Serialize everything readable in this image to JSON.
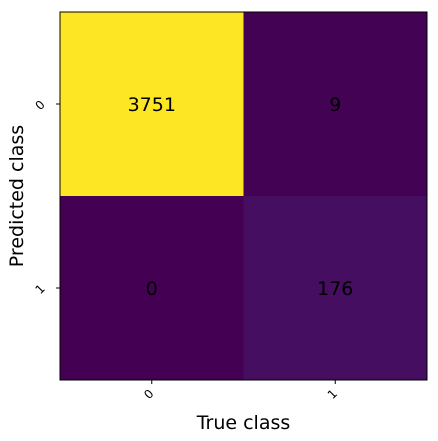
{
  "chart_data": {
    "type": "heatmap",
    "xlabel": "True class",
    "ylabel": "Predicted class",
    "x_categories": [
      "0",
      "1"
    ],
    "y_categories": [
      "0",
      "1"
    ],
    "values": [
      [
        3751,
        9
      ],
      [
        0,
        176
      ]
    ],
    "colormap": "viridis",
    "colors": {
      "low": "#440154",
      "high": "#fde725"
    },
    "grid": false,
    "legend": "none"
  }
}
